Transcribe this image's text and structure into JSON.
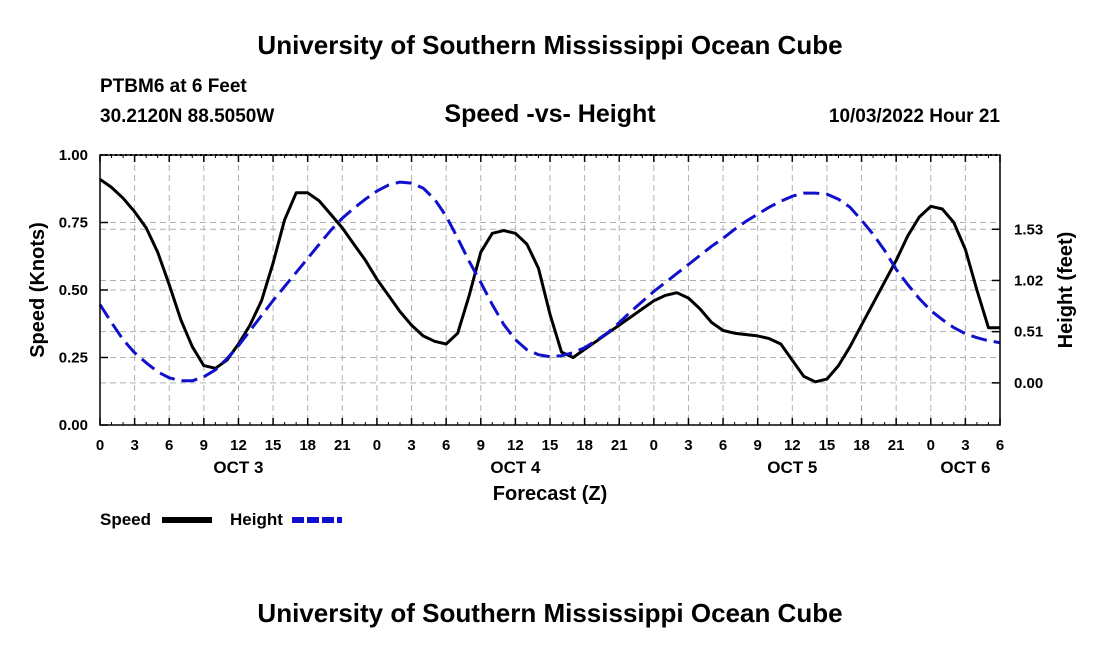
{
  "header": {
    "title": "University of Southern Mississippi Ocean Cube",
    "station": "PTBM6 at 6 Feet",
    "coords": "30.2120N  88.5050W",
    "subtitle": "Speed -vs- Height",
    "datetime": "10/03/2022 Hour 21"
  },
  "footer": {
    "title": "University of Southern Mississippi Ocean Cube"
  },
  "chart_data": {
    "type": "line",
    "title": "Speed -vs- Height",
    "xlabel": "Forecast (Z)",
    "ylabel": "Speed (Knots)",
    "y2label": "Height (feet)",
    "xlim": [
      0,
      78
    ],
    "ylim": [
      0,
      1.0
    ],
    "y2lim": [
      -0.42,
      2.27
    ],
    "x_tick_labels": [
      "0",
      "3",
      "6",
      "9",
      "12",
      "15",
      "18",
      "21",
      "0",
      "3",
      "6",
      "9",
      "12",
      "15",
      "18",
      "21",
      "0",
      "3",
      "6",
      "9",
      "12",
      "15",
      "18",
      "21",
      "0",
      "3",
      "6"
    ],
    "date_labels": [
      {
        "label": "OCT 3",
        "x": 12
      },
      {
        "label": "OCT 4",
        "x": 36
      },
      {
        "label": "OCT 5",
        "x": 60
      },
      {
        "label": "OCT 6",
        "x": 75
      }
    ],
    "y_ticks": [
      0,
      0.25,
      0.5,
      0.75,
      1.0
    ],
    "y_tick_labels": [
      "0.00",
      "0.25",
      "0.50",
      "0.75",
      "1.00"
    ],
    "y2_ticks": [
      0,
      0.51,
      1.02,
      1.53
    ],
    "y2_tick_labels": [
      "0.00",
      "0.51",
      "1.02",
      "1.53"
    ],
    "grid": true,
    "legend": [
      {
        "name": "Speed",
        "color": "#000000",
        "style": "solid"
      },
      {
        "name": "Height",
        "color": "#1010cc",
        "style": "dashed"
      }
    ],
    "series": [
      {
        "name": "Speed",
        "axis": "left",
        "color": "#000000",
        "dash": "none",
        "x": [
          0,
          1,
          2,
          3,
          4,
          5,
          6,
          7,
          8,
          9,
          10,
          11,
          12,
          13,
          14,
          15,
          16,
          17,
          18,
          19,
          20,
          21,
          22,
          23,
          24,
          25,
          26,
          27,
          28,
          29,
          30,
          31,
          32,
          33,
          34,
          35,
          36,
          37,
          38,
          39,
          40,
          41,
          42,
          43,
          44,
          45,
          46,
          47,
          48,
          49,
          50,
          51,
          52,
          53,
          54,
          55,
          56,
          57,
          58,
          59,
          60,
          61,
          62,
          63,
          64,
          65,
          66,
          67,
          68,
          69,
          70,
          71,
          72,
          73,
          74,
          75,
          76,
          77,
          78
        ],
        "values": [
          0.91,
          0.88,
          0.84,
          0.79,
          0.73,
          0.64,
          0.52,
          0.39,
          0.29,
          0.22,
          0.21,
          0.24,
          0.3,
          0.37,
          0.46,
          0.6,
          0.76,
          0.86,
          0.86,
          0.83,
          0.78,
          0.73,
          0.67,
          0.61,
          0.54,
          0.48,
          0.42,
          0.37,
          0.33,
          0.31,
          0.3,
          0.34,
          0.48,
          0.64,
          0.71,
          0.72,
          0.71,
          0.67,
          0.58,
          0.41,
          0.27,
          0.25,
          0.28,
          0.31,
          0.34,
          0.37,
          0.4,
          0.43,
          0.46,
          0.48,
          0.49,
          0.47,
          0.43,
          0.38,
          0.35,
          0.34,
          0.335,
          0.33,
          0.32,
          0.3,
          0.24,
          0.18,
          0.16,
          0.17,
          0.22,
          0.29,
          0.37,
          0.45,
          0.53,
          0.61,
          0.7,
          0.77,
          0.81,
          0.8,
          0.75,
          0.65,
          0.5,
          0.36,
          0.36
        ]
      },
      {
        "name": "Height",
        "axis": "right",
        "color": "#1010cc",
        "dash": "16 7",
        "x": [
          0,
          1,
          2,
          3,
          4,
          5,
          6,
          7,
          8,
          9,
          10,
          11,
          12,
          13,
          14,
          15,
          16,
          17,
          18,
          19,
          20,
          21,
          22,
          23,
          24,
          25,
          26,
          27,
          28,
          29,
          30,
          31,
          32,
          33,
          34,
          35,
          36,
          37,
          38,
          39,
          40,
          41,
          42,
          43,
          44,
          45,
          46,
          47,
          48,
          49,
          50,
          51,
          52,
          53,
          54,
          55,
          56,
          57,
          58,
          59,
          60,
          61,
          62,
          63,
          64,
          65,
          66,
          67,
          68,
          69,
          70,
          71,
          72,
          73,
          74,
          75,
          76,
          77,
          78
        ],
        "values": [
          0.78,
          0.6,
          0.43,
          0.3,
          0.2,
          0.11,
          0.05,
          0.02,
          0.02,
          0.06,
          0.13,
          0.24,
          0.37,
          0.52,
          0.67,
          0.82,
          0.96,
          1.1,
          1.24,
          1.38,
          1.52,
          1.64,
          1.74,
          1.83,
          1.91,
          1.97,
          2.0,
          1.99,
          1.94,
          1.83,
          1.66,
          1.44,
          1.21,
          1.0,
          0.78,
          0.58,
          0.43,
          0.33,
          0.28,
          0.26,
          0.27,
          0.3,
          0.35,
          0.42,
          0.5,
          0.6,
          0.71,
          0.81,
          0.91,
          1.0,
          1.09,
          1.18,
          1.27,
          1.36,
          1.44,
          1.53,
          1.61,
          1.68,
          1.75,
          1.81,
          1.86,
          1.89,
          1.89,
          1.88,
          1.83,
          1.75,
          1.62,
          1.48,
          1.32,
          1.13,
          0.98,
          0.84,
          0.72,
          0.63,
          0.55,
          0.49,
          0.45,
          0.42,
          0.4
        ]
      }
    ]
  }
}
